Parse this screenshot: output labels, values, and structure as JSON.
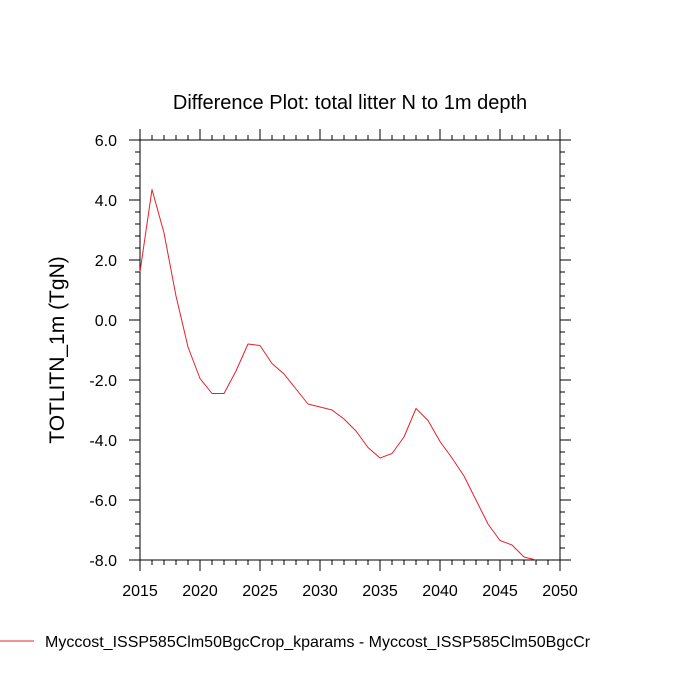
{
  "chart_data": {
    "type": "line",
    "title": "Difference Plot: total litter N to 1m depth",
    "xlabel": "",
    "ylabel": "TOTLITN_1m  (TgN)",
    "xlim": [
      2015,
      2050
    ],
    "ylim": [
      -8.0,
      6.0
    ],
    "x_ticks": [
      2015,
      2020,
      2025,
      2030,
      2035,
      2040,
      2045,
      2050
    ],
    "x_tick_labels": [
      "2015",
      "2020",
      "2025",
      "2030",
      "2035",
      "2040",
      "2045",
      "2050"
    ],
    "y_ticks": [
      6.0,
      4.0,
      2.0,
      0.0,
      -2.0,
      -4.0,
      -6.0,
      -8.0
    ],
    "y_tick_labels": [
      "6.0",
      "4.0",
      "2.0",
      "0.0",
      "-2.0",
      "-4.0",
      "-6.0",
      "-8.0"
    ],
    "grid": false,
    "legend_position": "bottom",
    "series": [
      {
        "name": "Myccost_ISSP585Clm50BgcCrop_kparams - Myccost_ISSP585Clm50BgcCr",
        "color": "#e8202a",
        "x": [
          2015,
          2016,
          2017,
          2018,
          2019,
          2020,
          2021,
          2022,
          2023,
          2024,
          2025,
          2026,
          2027,
          2028,
          2029,
          2030,
          2031,
          2032,
          2033,
          2034,
          2035,
          2036,
          2037,
          2038,
          2039,
          2040,
          2041,
          2042,
          2043,
          2044,
          2045,
          2046,
          2047,
          2048
        ],
        "y": [
          1.6,
          4.35,
          2.9,
          0.8,
          -0.9,
          -1.95,
          -2.45,
          -2.45,
          -1.7,
          -0.8,
          -0.85,
          -1.45,
          -1.8,
          -2.3,
          -2.8,
          -2.9,
          -3.0,
          -3.3,
          -3.7,
          -4.25,
          -4.6,
          -4.45,
          -3.9,
          -2.95,
          -3.35,
          -4.05,
          -4.6,
          -5.2,
          -6.0,
          -6.8,
          -7.35,
          -7.5,
          -7.9,
          -8.0
        ]
      }
    ]
  }
}
